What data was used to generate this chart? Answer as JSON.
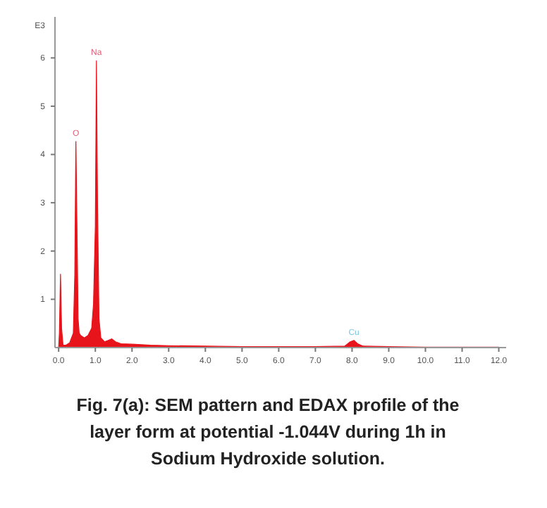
{
  "chart_data": {
    "type": "area",
    "title": "Fig. 7(a): SEM pattern and EDAX profile of the layer form at potential -1.044V during 1h in Sodium Hydroxide solution.",
    "ylabel": "E3",
    "x": [
      0,
      0.02,
      0.05,
      0.08,
      0.12,
      0.2,
      0.3,
      0.4,
      0.44,
      0.47,
      0.5,
      0.53,
      0.56,
      0.6,
      0.7,
      0.8,
      0.9,
      0.95,
      1.0,
      1.03,
      1.06,
      1.1,
      1.15,
      1.25,
      1.35,
      1.45,
      1.55,
      1.7,
      2.0,
      2.5,
      3.0,
      4.0,
      5.0,
      6.0,
      7.0,
      7.8,
      7.95,
      8.05,
      8.15,
      8.3,
      9.0,
      10.0,
      11.0,
      12.0
    ],
    "series": [
      {
        "color": "#e8141b",
        "values": [
          0,
          0.3,
          1.52,
          0.4,
          0.05,
          0.05,
          0.1,
          0.3,
          1.5,
          4.27,
          2.5,
          0.6,
          0.3,
          0.25,
          0.2,
          0.25,
          0.4,
          0.9,
          2.5,
          5.94,
          3.0,
          0.6,
          0.2,
          0.12,
          0.15,
          0.18,
          0.12,
          0.08,
          0.07,
          0.05,
          0.04,
          0.03,
          0.02,
          0.02,
          0.02,
          0.03,
          0.12,
          0.15,
          0.08,
          0.03,
          0.02,
          0.01,
          0.01,
          0.01
        ]
      }
    ],
    "annotations": [
      {
        "text": "O",
        "x": 0.47,
        "y": 4.27
      },
      {
        "text": "Na",
        "x": 1.03,
        "y": 5.94
      },
      {
        "text": "Cu",
        "x": 8.05,
        "y": 0.15
      }
    ],
    "xlim": [
      -0.1,
      12.2
    ],
    "ylim": [
      0,
      6.85
    ],
    "xticks": [
      {
        "value": 0,
        "label": "0.0"
      },
      {
        "value": 1,
        "label": "1.0"
      },
      {
        "value": 2,
        "label": "2.0"
      },
      {
        "value": 3,
        "label": "3.0"
      },
      {
        "value": 4,
        "label": "4.0"
      },
      {
        "value": 5,
        "label": "5.0"
      },
      {
        "value": 6,
        "label": "6.0"
      },
      {
        "value": 7,
        "label": "7.0"
      },
      {
        "value": 8,
        "label": "8.0"
      },
      {
        "value": 9,
        "label": "9.0"
      },
      {
        "value": 10,
        "label": "10.0"
      },
      {
        "value": 11,
        "label": "11.0"
      },
      {
        "value": 12,
        "label": "12.0"
      }
    ],
    "yticks": [
      1,
      2,
      3,
      4,
      5,
      6
    ]
  }
}
